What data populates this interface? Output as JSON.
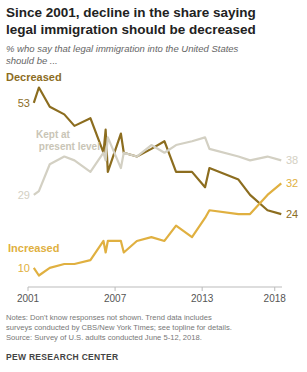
{
  "chart_data": {
    "type": "line",
    "title": [
      "Since 2001, decline in the share saying",
      "legal immigration should be decreased"
    ],
    "subtitle": [
      "% who say that legal immigration into the United States",
      "should be ..."
    ],
    "notes": [
      "Notes: Don't know responses not shown. Trend data includes",
      "surveys conducted by CBS/New York Times; see topline for details.",
      "Source: Survey of U.S. adults conducted June 5-12, 2018."
    ],
    "source": "PEW RESEARCH CENTER",
    "x": [
      2001.4,
      2001.75,
      2002.5,
      2003.5,
      2004.2,
      2005.3,
      2006.2,
      2006.35,
      2006.5,
      2007.4,
      2007.6,
      2008.5,
      2009.5,
      2010.4,
      2011.2,
      2012.3,
      2013.2,
      2013.5,
      2015.5,
      2016.3,
      2017.5,
      2018.45
    ],
    "series": [
      {
        "name": "Decreased",
        "color": "#8c6d1f",
        "values": [
          53,
          57,
          52,
          50,
          47,
          49,
          40,
          46,
          35,
          45,
          40,
          39,
          41,
          43,
          35,
          35,
          31,
          36,
          33,
          29,
          25,
          24
        ]
      },
      {
        "name": "Kept at present level",
        "color": "#d3d0c3",
        "values": [
          29,
          30,
          37,
          39,
          38,
          35,
          40,
          38,
          44,
          36,
          40,
          39,
          42,
          40,
          42,
          43,
          44,
          41,
          39,
          38,
          39,
          38
        ]
      },
      {
        "name": "Increased",
        "color": "#e0b040",
        "values": [
          10,
          8,
          10,
          11,
          11,
          12,
          17,
          14,
          17,
          17,
          14,
          17,
          18,
          17,
          21,
          18,
          23,
          25,
          24,
          24,
          29,
          32
        ]
      }
    ],
    "xlim": [
      2001,
      2018.5
    ],
    "xticks": [
      2001,
      2007,
      2013,
      2018
    ],
    "ylim": [
      5,
      60
    ],
    "tick_labels": "x",
    "grid": false
  }
}
